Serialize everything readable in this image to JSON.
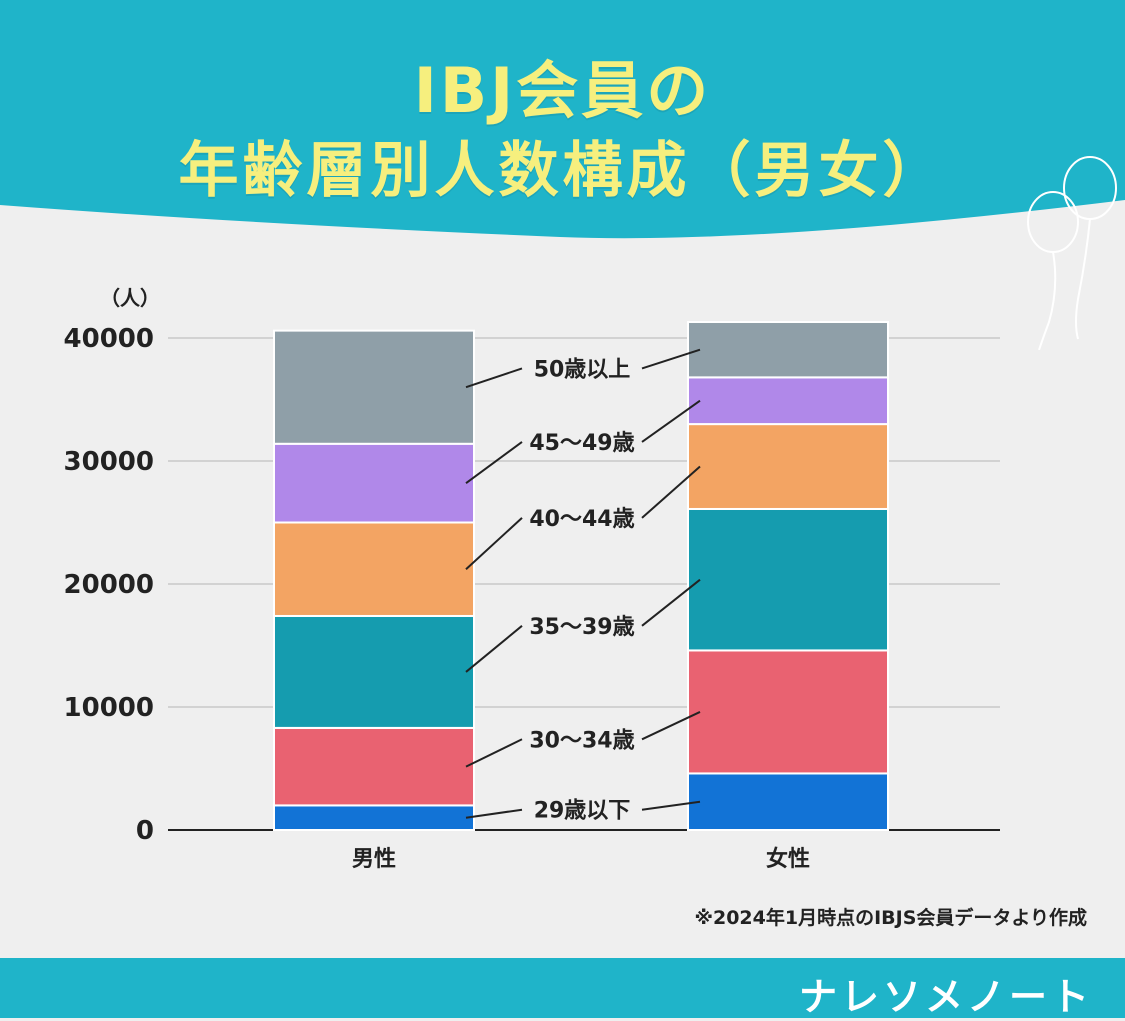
{
  "header": {
    "title_line1": "IBJ会員の",
    "title_line2": "年齢層別人数構成（男女）"
  },
  "colors": {
    "header_bg": "#1fb4c9",
    "title_text": "#f6ef7e",
    "background": "#efefef"
  },
  "chart_data": {
    "type": "bar",
    "stacked": true,
    "ylabel": "（人）",
    "ylim": [
      0,
      40000
    ],
    "yticks": [
      0,
      10000,
      20000,
      30000,
      40000
    ],
    "grid": true,
    "categories": [
      "男性",
      "女性"
    ],
    "series": [
      {
        "name": "29歳以下",
        "color": "#1273d6",
        "values": [
          2000,
          4600
        ]
      },
      {
        "name": "30～34歳",
        "color": "#e96271",
        "values": [
          6300,
          10000
        ]
      },
      {
        "name": "35～39歳",
        "color": "#159caf",
        "values": [
          9100,
          11500
        ]
      },
      {
        "name": "40～44歳",
        "color": "#f3a463",
        "values": [
          7600,
          6900
        ]
      },
      {
        "name": "45～49歳",
        "color": "#b088e9",
        "values": [
          6400,
          3800
        ]
      },
      {
        "name": "50歳以上",
        "color": "#8f9fa8",
        "values": [
          9200,
          4500
        ]
      }
    ]
  },
  "footnote": "※2024年1月時点のIBJS会員データより作成",
  "brand": "ナレソメノート"
}
